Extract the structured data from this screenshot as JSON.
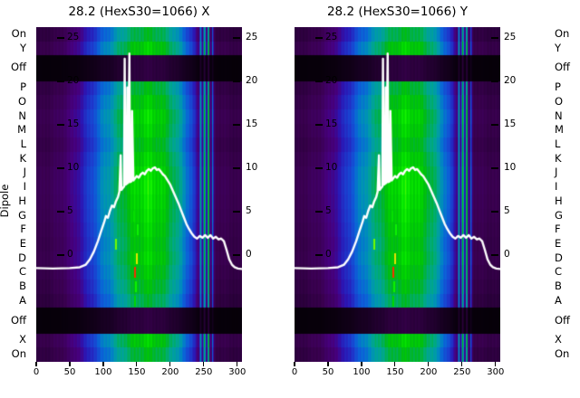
{
  "titles": {
    "left": "28.2 (HexS30=1066) X",
    "right": "28.2 (HexS30=1066) Y"
  },
  "ylabel": "Dipole",
  "chart_data": {
    "type": "heatmap",
    "description": "Two heatmap panels (X and Y planes) of beam intensity vs position (x axis 0-300) for each dipole row label, rendered in a nipy-spectral-like colormap, with a white intensity-profile curve overlaid on an inner axis scaled 0-25. 'Off' rows appear as dark horizontal bands.",
    "panels": [
      {
        "title": "28.2 (HexS30=1066) X"
      },
      {
        "title": "28.2 (HexS30=1066) Y"
      }
    ],
    "rows": [
      {
        "label": "On",
        "weight": 1,
        "factor": 0.82
      },
      {
        "label": "Y",
        "weight": 1,
        "factor": 0.95
      },
      {
        "label": "Off",
        "weight": 1.8,
        "factor": 0.13
      },
      {
        "label": "P",
        "weight": 1,
        "factor": 0.85
      },
      {
        "label": "O",
        "weight": 1,
        "factor": 0.93
      },
      {
        "label": "N",
        "weight": 1,
        "factor": 1.0
      },
      {
        "label": "M",
        "weight": 1,
        "factor": 0.96
      },
      {
        "label": "L",
        "weight": 1,
        "factor": 0.9
      },
      {
        "label": "K",
        "weight": 1,
        "factor": 0.97
      },
      {
        "label": "J",
        "weight": 1,
        "factor": 1.02
      },
      {
        "label": "I",
        "weight": 1,
        "factor": 1.04
      },
      {
        "label": "H",
        "weight": 1,
        "factor": 1.02
      },
      {
        "label": "G",
        "weight": 1,
        "factor": 1.0
      },
      {
        "label": "F",
        "weight": 1,
        "factor": 0.97
      },
      {
        "label": "E",
        "weight": 1,
        "factor": 0.94
      },
      {
        "label": "D",
        "weight": 1,
        "factor": 0.97
      },
      {
        "label": "C",
        "weight": 1,
        "factor": 0.92
      },
      {
        "label": "B",
        "weight": 1,
        "factor": 0.87
      },
      {
        "label": "A",
        "weight": 1,
        "factor": 0.8
      },
      {
        "label": "Off",
        "weight": 1.8,
        "factor": 0.13
      },
      {
        "label": "X",
        "weight": 1,
        "factor": 0.95
      },
      {
        "label": "On",
        "weight": 1,
        "factor": 0.85
      }
    ],
    "x": {
      "min": 0,
      "max": 307,
      "ticks": [
        0,
        50,
        100,
        150,
        200,
        250,
        300
      ]
    },
    "overlay_axis": {
      "range": [
        0,
        25
      ],
      "ticks": [
        25,
        20,
        15,
        10,
        5,
        0
      ]
    },
    "colormap": {
      "name": "nipy-spectral-like",
      "stops": [
        [
          0.0,
          "#000000"
        ],
        [
          0.05,
          "#1c0028"
        ],
        [
          0.09,
          "#3a0050"
        ],
        [
          0.13,
          "#47007e"
        ],
        [
          0.17,
          "#2b16b4"
        ],
        [
          0.22,
          "#1b3fd0"
        ],
        [
          0.27,
          "#0b63d8"
        ],
        [
          0.32,
          "#0089c0"
        ],
        [
          0.36,
          "#009da6"
        ],
        [
          0.4,
          "#00a985"
        ],
        [
          0.45,
          "#00b148"
        ],
        [
          0.5,
          "#00bb0f"
        ],
        [
          0.56,
          "#00d500"
        ],
        [
          0.62,
          "#0cf200"
        ],
        [
          0.68,
          "#71fb00"
        ],
        [
          0.74,
          "#d8f400"
        ],
        [
          0.8,
          "#ffc400"
        ],
        [
          0.87,
          "#ff5e00"
        ],
        [
          0.93,
          "#e80000"
        ],
        [
          1.0,
          "#cccccc"
        ]
      ]
    },
    "column_profile": [
      [
        0,
        0.085
      ],
      [
        12,
        0.09
      ],
      [
        22,
        0.095
      ],
      [
        32,
        0.1
      ],
      [
        42,
        0.115
      ],
      [
        52,
        0.13
      ],
      [
        60,
        0.15
      ],
      [
        68,
        0.175
      ],
      [
        76,
        0.205
      ],
      [
        84,
        0.24
      ],
      [
        92,
        0.28
      ],
      [
        100,
        0.32
      ],
      [
        108,
        0.355
      ],
      [
        116,
        0.39
      ],
      [
        124,
        0.44
      ],
      [
        132,
        0.48
      ],
      [
        140,
        0.515
      ],
      [
        148,
        0.545
      ],
      [
        156,
        0.565
      ],
      [
        164,
        0.58
      ],
      [
        172,
        0.575
      ],
      [
        180,
        0.555
      ],
      [
        188,
        0.525
      ],
      [
        196,
        0.49
      ],
      [
        204,
        0.445
      ],
      [
        210,
        0.4
      ],
      [
        216,
        0.355
      ],
      [
        222,
        0.31
      ],
      [
        228,
        0.265
      ],
      [
        233,
        0.22
      ],
      [
        238,
        0.17
      ],
      [
        242,
        0.125
      ],
      [
        244,
        0.3
      ],
      [
        245,
        0.46
      ],
      [
        246,
        0.22
      ],
      [
        248,
        0.115
      ],
      [
        250,
        0.5
      ],
      [
        251,
        0.54
      ],
      [
        252,
        0.22
      ],
      [
        254,
        0.115
      ],
      [
        256,
        0.46
      ],
      [
        257,
        0.5
      ],
      [
        258,
        0.16
      ],
      [
        261,
        0.115
      ],
      [
        263,
        0.38
      ],
      [
        264,
        0.115
      ],
      [
        267,
        0.1
      ],
      [
        274,
        0.092
      ],
      [
        284,
        0.09
      ],
      [
        295,
        0.087
      ],
      [
        307,
        0.082
      ]
    ],
    "curve": {
      "color": "#ffffff",
      "width": 2.4,
      "points": [
        [
          0,
          -1.5
        ],
        [
          25,
          -1.55
        ],
        [
          50,
          -1.5
        ],
        [
          65,
          -1.4
        ],
        [
          74,
          -1.1
        ],
        [
          80,
          -0.5
        ],
        [
          86,
          0.4
        ],
        [
          92,
          1.6
        ],
        [
          97,
          2.8
        ],
        [
          101,
          3.7
        ],
        [
          104,
          4.5
        ],
        [
          107,
          4.3
        ],
        [
          110,
          5.1
        ],
        [
          113,
          5.7
        ],
        [
          116,
          5.5
        ],
        [
          119,
          6.2
        ],
        [
          122,
          6.7
        ],
        [
          124,
          7.3
        ],
        [
          126,
          11.5
        ],
        [
          127,
          7.5
        ],
        [
          129,
          7.7
        ],
        [
          131,
          7.9
        ],
        [
          132,
          22.6
        ],
        [
          133,
          8.1
        ],
        [
          135,
          8.2
        ],
        [
          136,
          19.3
        ],
        [
          137,
          8.3
        ],
        [
          139,
          23.2
        ],
        [
          140,
          8.4
        ],
        [
          142,
          8.5
        ],
        [
          143,
          16.6
        ],
        [
          145,
          8.6
        ],
        [
          147,
          8.8
        ],
        [
          150,
          9.1
        ],
        [
          153,
          8.9
        ],
        [
          156,
          9.3
        ],
        [
          159,
          9.5
        ],
        [
          162,
          9.3
        ],
        [
          165,
          9.7
        ],
        [
          168,
          9.9
        ],
        [
          171,
          9.7
        ],
        [
          174,
          10.0
        ],
        [
          177,
          10.1
        ],
        [
          180,
          9.8
        ],
        [
          183,
          9.9
        ],
        [
          186,
          9.6
        ],
        [
          189,
          9.3
        ],
        [
          192,
          9.1
        ],
        [
          196,
          8.6
        ],
        [
          200,
          8.1
        ],
        [
          204,
          7.4
        ],
        [
          208,
          6.7
        ],
        [
          212,
          6.0
        ],
        [
          216,
          5.2
        ],
        [
          220,
          4.4
        ],
        [
          224,
          3.6
        ],
        [
          228,
          3.0
        ],
        [
          232,
          2.5
        ],
        [
          236,
          2.1
        ],
        [
          240,
          1.9
        ],
        [
          244,
          2.2
        ],
        [
          248,
          2.0
        ],
        [
          252,
          2.3
        ],
        [
          256,
          2.0
        ],
        [
          260,
          2.3
        ],
        [
          264,
          1.9
        ],
        [
          268,
          2.1
        ],
        [
          272,
          1.8
        ],
        [
          276,
          1.9
        ],
        [
          280,
          1.6
        ],
        [
          284,
          0.6
        ],
        [
          288,
          -0.5
        ],
        [
          292,
          -1.1
        ],
        [
          296,
          -1.4
        ],
        [
          301,
          -1.55
        ],
        [
          307,
          -1.6
        ]
      ]
    },
    "specks": [
      [
        148,
        16,
        0.9
      ],
      [
        150,
        15,
        0.76
      ],
      [
        152,
        13,
        0.62
      ],
      [
        119,
        14,
        0.68
      ],
      [
        147,
        18,
        0.56
      ],
      [
        149,
        17,
        0.62
      ],
      [
        146,
        12,
        0.58
      ]
    ]
  }
}
